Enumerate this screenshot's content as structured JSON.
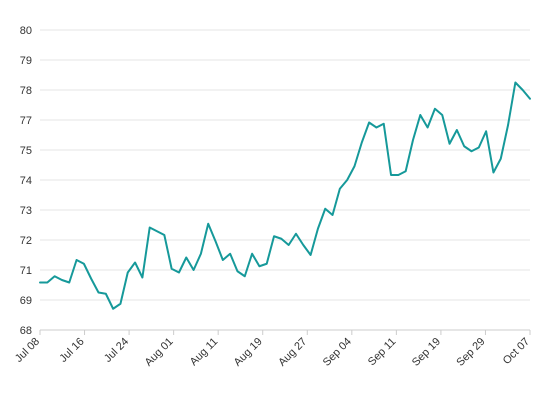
{
  "chart_data": {
    "type": "line",
    "title": "",
    "xlabel": "",
    "ylabel": "",
    "ylim": [
      68,
      80
    ],
    "y_tick_labels": [
      "68",
      "69",
      "71",
      "72",
      "73",
      "74",
      "75",
      "77",
      "78",
      "79",
      "80"
    ],
    "x_tick_labels": [
      "Jul 08",
      "Jul 16",
      "Jul 24",
      "Aug 01",
      "Aug 11",
      "Aug 19",
      "Aug 27",
      "Sep 04",
      "Sep 11",
      "Sep 19",
      "Sep 29",
      "Oct 07"
    ],
    "grid": "horizontal",
    "legend": "none",
    "colors": {
      "line": "#16999a",
      "grid": "#e6e6e6",
      "axis": "#cccccc",
      "text": "#333333"
    },
    "series": [
      {
        "values": [
          69.9,
          69.9,
          70.15,
          70.0,
          69.9,
          70.8,
          70.65,
          70.05,
          69.5,
          69.45,
          68.85,
          69.05,
          70.3,
          70.7,
          70.1,
          72.1,
          71.95,
          71.8,
          70.45,
          70.3,
          70.9,
          70.4,
          71.05,
          72.25,
          71.55,
          70.8,
          71.05,
          70.35,
          70.15,
          71.05,
          70.55,
          70.65,
          71.75,
          71.65,
          71.4,
          71.85,
          71.4,
          71.0,
          72.05,
          72.85,
          72.6,
          73.65,
          74.0,
          74.55,
          75.5,
          76.3,
          76.1,
          76.25,
          74.2,
          74.2,
          74.35,
          75.6,
          76.6,
          76.1,
          76.85,
          76.6,
          75.45,
          76.0,
          75.35,
          75.15,
          75.3,
          75.95,
          74.3,
          74.85,
          76.2,
          77.9,
          77.6,
          77.25
        ]
      }
    ]
  }
}
